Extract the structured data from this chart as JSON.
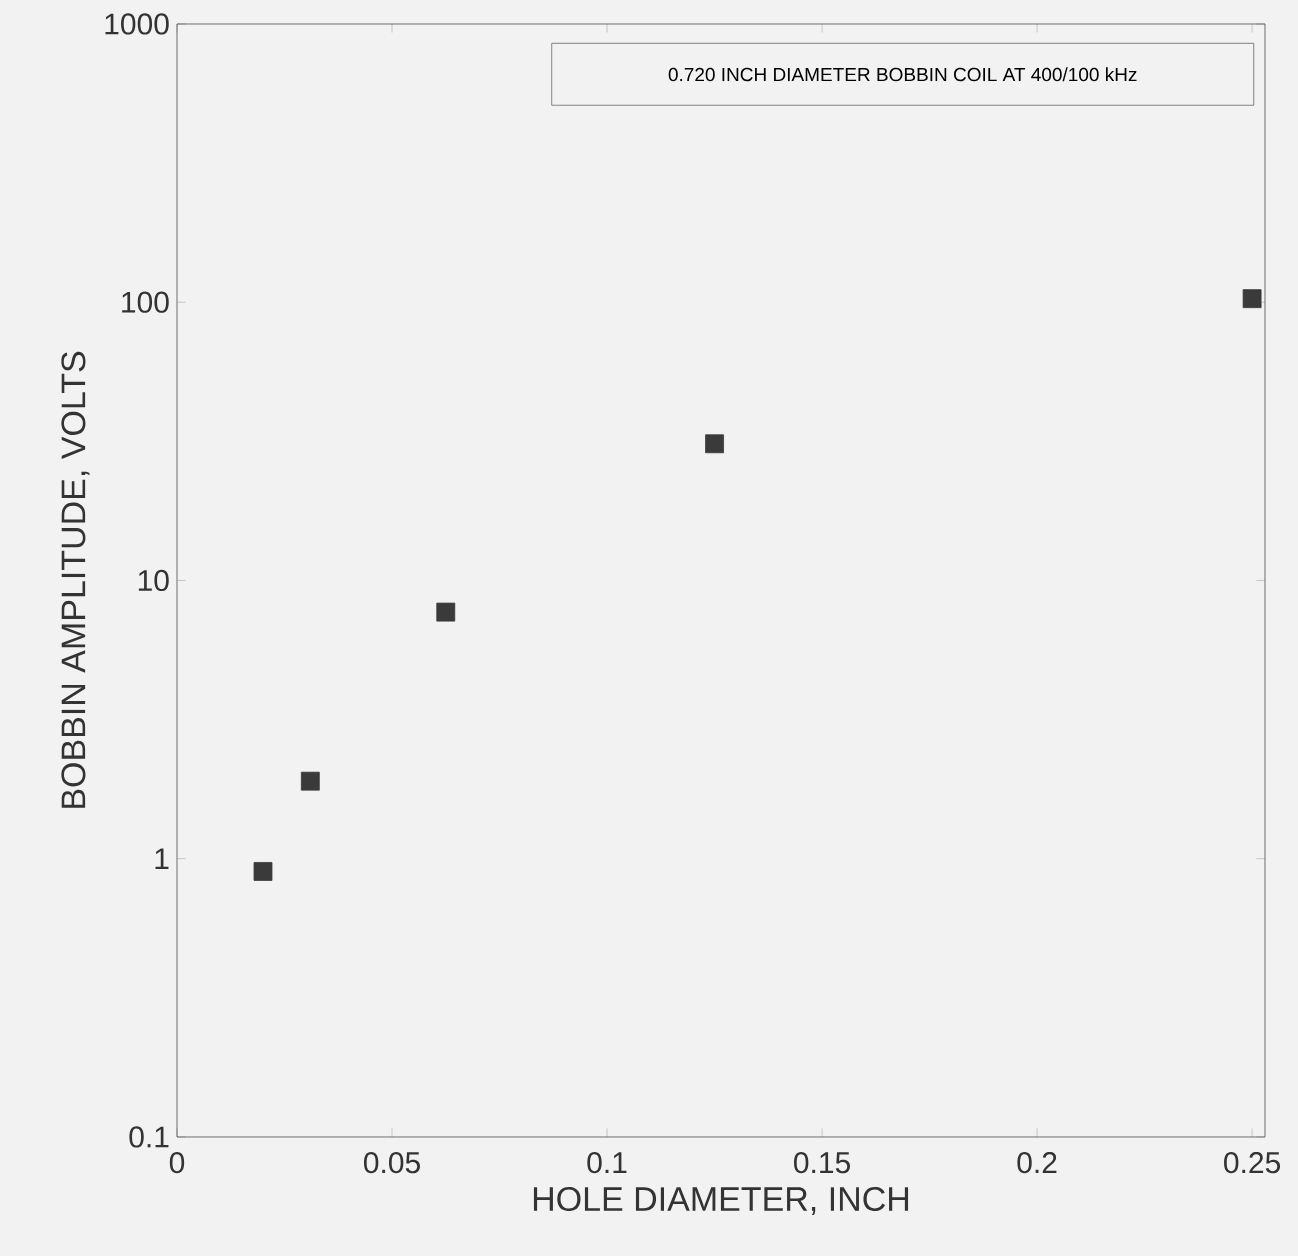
{
  "chart_data": {
    "type": "scatter",
    "xlabel": "HOLE DIAMETER, INCH",
    "ylabel": "BOBBIN AMPLITUDE, VOLTS",
    "annotations": [
      "0.720 INCH DIAMETER BOBBIN COIL AT 400/100 kHz"
    ],
    "series": [
      {
        "color": "#3a3a3a",
        "x": [
          0.02,
          0.031,
          0.0625,
          0.125,
          0.25
        ],
        "values": [
          0.9,
          1.9,
          7.7,
          31,
          103
        ]
      }
    ],
    "xlim": [
      0,
      0.253
    ],
    "ylim": [
      0.1,
      1000
    ],
    "xticks": [
      0,
      0.05,
      0.1,
      0.15,
      0.2,
      0.25
    ],
    "yticks": [
      0.1,
      1,
      10,
      100,
      1000
    ],
    "log": "y",
    "grid": false,
    "marker": "square"
  }
}
